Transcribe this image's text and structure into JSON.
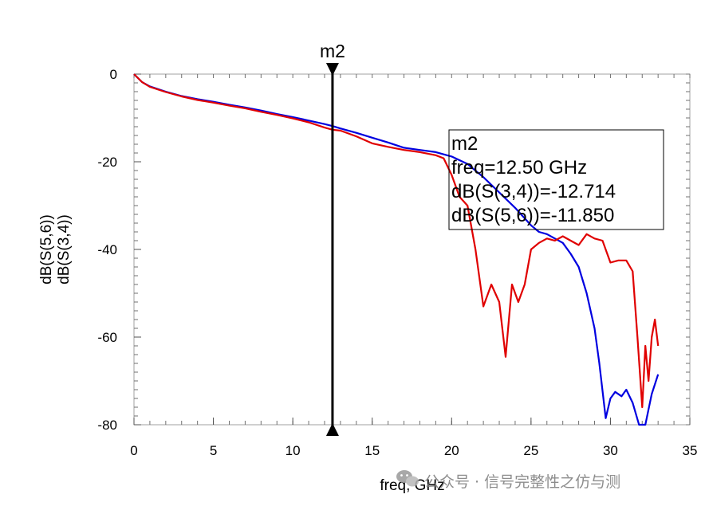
{
  "chart_data": {
    "type": "line",
    "xlabel": "freq, GHz",
    "xlim": [
      0,
      35
    ],
    "ylim": [
      -80,
      0
    ],
    "x_ticks": [
      0,
      5,
      10,
      15,
      20,
      25,
      30,
      35
    ],
    "y_ticks": [
      0,
      -20,
      -40,
      -60,
      -80
    ],
    "grid": false,
    "series": [
      {
        "name": "dB(S(5,6))",
        "color": "#0000e0",
        "x": [
          0,
          0.5,
          1,
          2,
          3,
          4,
          5,
          6,
          7,
          8,
          9,
          10,
          11,
          12,
          12.5,
          13,
          14,
          15,
          16,
          17,
          18,
          19,
          20,
          21,
          22,
          23,
          24,
          25,
          25.5,
          26,
          27,
          27.5,
          28,
          28.5,
          29,
          29.3,
          29.7,
          30,
          30.3,
          30.7,
          31,
          31.4,
          31.8,
          32.2,
          32.6,
          33
        ],
        "y": [
          0,
          -1.8,
          -2.8,
          -4,
          -5,
          -5.7,
          -6.3,
          -7,
          -7.6,
          -8.3,
          -9.1,
          -9.8,
          -10.6,
          -11.4,
          -11.85,
          -12.4,
          -13.4,
          -14.5,
          -15.6,
          -16.8,
          -17.3,
          -17.8,
          -18.8,
          -20.5,
          -23.5,
          -27,
          -30.5,
          -34.5,
          -36,
          -36.5,
          -38.5,
          -41,
          -44,
          -50,
          -58,
          -66,
          -78.5,
          -74,
          -72.5,
          -73.5,
          -72,
          -75,
          -80,
          -80,
          -73,
          -68.5
        ]
      },
      {
        "name": "dB(S(3,4))",
        "color": "#e00000",
        "x": [
          0,
          0.5,
          1,
          2,
          3,
          4,
          5,
          6,
          7,
          8,
          9,
          10,
          11,
          12,
          12.5,
          13,
          14,
          15,
          16,
          17,
          18,
          19,
          19.5,
          20,
          20.5,
          21,
          21.5,
          22,
          22.5,
          23,
          23.4,
          23.8,
          24.2,
          24.6,
          25,
          25.5,
          26,
          26.5,
          27,
          27.5,
          28,
          28.5,
          29,
          29.5,
          30,
          30.5,
          31,
          31.4,
          31.7,
          32,
          32.2,
          32.4,
          32.6,
          32.8,
          33
        ],
        "y": [
          0,
          -1.8,
          -2.9,
          -4.1,
          -5.1,
          -5.9,
          -6.5,
          -7.2,
          -7.8,
          -8.6,
          -9.3,
          -10.1,
          -11,
          -12.2,
          -12.7,
          -12.9,
          -14.2,
          -15.8,
          -16.6,
          -17.3,
          -17.8,
          -18.5,
          -19.2,
          -23,
          -28,
          -30,
          -40,
          -53,
          -48,
          -52,
          -64.5,
          -48,
          -52,
          -48,
          -40,
          -38.5,
          -37.5,
          -38,
          -37,
          -38,
          -39,
          -36.5,
          -37.5,
          -38,
          -43,
          -42.5,
          -42.5,
          -45,
          -60,
          -76,
          -62,
          -70,
          -60,
          -56,
          -62
        ]
      }
    ],
    "marker": {
      "label": "m2",
      "x": 12.5,
      "readout": [
        "m2",
        "freq=12.50 GHz",
        "dB(S(3,4))=-12.714",
        "dB(S(5,6))=-11.850"
      ]
    }
  },
  "watermark": {
    "text": "公众号 · 信号完整性之仿与测",
    "icon": "wechat-icon"
  }
}
